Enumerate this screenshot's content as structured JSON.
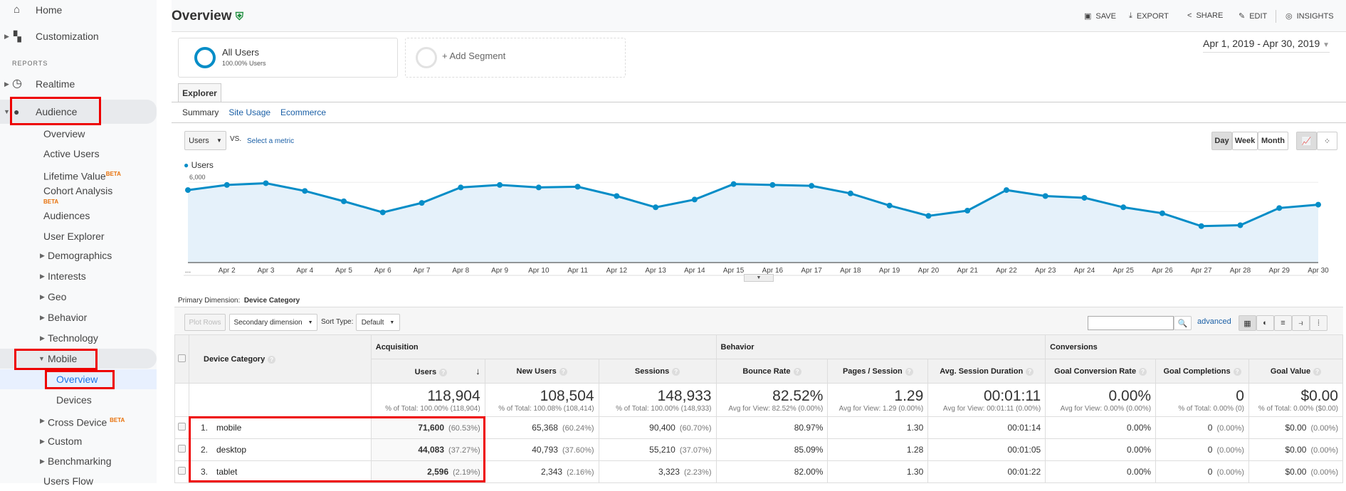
{
  "sidebar": {
    "items": [
      {
        "label": "Home",
        "icon": "home-icon"
      },
      {
        "label": "Customization",
        "icon": "dashboard-plus-icon"
      },
      {
        "label": "REPORTS"
      },
      {
        "label": "Realtime",
        "icon": "clock-icon"
      },
      {
        "label": "Audience",
        "icon": "person-icon"
      },
      {
        "label": "Overview"
      },
      {
        "label": "Active Users"
      },
      {
        "label": "Lifetime Value",
        "badge": "BETA"
      },
      {
        "label": "Cohort Analysis",
        "badge": "BETA"
      },
      {
        "label": "Audiences"
      },
      {
        "label": "User Explorer"
      },
      {
        "label": "Demographics"
      },
      {
        "label": "Interests"
      },
      {
        "label": "Geo"
      },
      {
        "label": "Behavior"
      },
      {
        "label": "Technology"
      },
      {
        "label": "Mobile"
      },
      {
        "label": "Overview"
      },
      {
        "label": "Devices"
      },
      {
        "label": "Cross Device",
        "badge": "BETA"
      },
      {
        "label": "Custom"
      },
      {
        "label": "Benchmarking"
      },
      {
        "label": "Users Flow"
      }
    ]
  },
  "header": {
    "title": "Overview",
    "verified_icon": "shield-check-icon",
    "verified_color": "#1e8e3e",
    "actions": [
      "SAVE",
      "EXPORT",
      "SHARE",
      "EDIT",
      "INSIGHTS"
    ]
  },
  "segments": {
    "all_users": "All Users",
    "all_users_sub": "100.00% Users",
    "add": "+ Add Segment",
    "segment_color": "#058dc7"
  },
  "date_range": "Apr 1, 2019 - Apr 30, 2019",
  "explorer": {
    "tab": "Explorer",
    "subtabs": [
      "Summary",
      "Site Usage",
      "Ecommerce"
    ],
    "metric": "Users",
    "vs": "VS.",
    "select_metric": "Select a metric",
    "granularity": [
      "Day",
      "Week",
      "Month"
    ],
    "active_granularity": "Day"
  },
  "chart_data": {
    "type": "area",
    "series": [
      {
        "name": "Users",
        "color": "#058dc7",
        "values": [
          5470,
          5820,
          5940,
          5410,
          4700,
          3940,
          4590,
          5650,
          5820,
          5650,
          5700,
          5060,
          4290,
          4820,
          5880,
          5820,
          5760,
          5240,
          4410,
          3700,
          4060,
          5470,
          5060,
          4940,
          4290,
          3880,
          3000,
          3060,
          4240,
          4470
        ]
      }
    ],
    "x": [
      "...",
      "Apr 2",
      "Apr 3",
      "Apr 4",
      "Apr 5",
      "Apr 6",
      "Apr 7",
      "Apr 8",
      "Apr 9",
      "Apr 10",
      "Apr 11",
      "Apr 12",
      "Apr 13",
      "Apr 14",
      "Apr 15",
      "Apr 16",
      "Apr 17",
      "Apr 18",
      "Apr 19",
      "Apr 20",
      "Apr 21",
      "Apr 22",
      "Apr 23",
      "Apr 24",
      "Apr 25",
      "Apr 26",
      "Apr 27",
      "Apr 28",
      "Apr 29",
      "Apr 30"
    ],
    "yticks": [
      "2,000",
      "4,000",
      "6,000"
    ],
    "ytick_values": [
      2000,
      4000,
      6000
    ],
    "ylim": [
      500,
      6450
    ],
    "legend": "top-left",
    "grid": true
  },
  "table": {
    "primary_dimension_label": "Primary Dimension:",
    "primary_dimension": "Device Category",
    "plot_rows": "Plot Rows",
    "secondary_dimension": "Secondary dimension",
    "sort_type_label": "Sort Type:",
    "sort_type": "Default",
    "search_value": "",
    "advanced": "advanced",
    "groups": [
      "Acquisition",
      "Behavior",
      "Conversions"
    ],
    "dimension_header": "Device Category",
    "columns": [
      "Users",
      "New Users",
      "Sessions",
      "Bounce Rate",
      "Pages / Session",
      "Avg. Session Duration",
      "Goal Conversion Rate",
      "Goal Completions",
      "Goal Value"
    ],
    "totals": [
      {
        "v": "118,904",
        "s": "% of Total: 100.00% (118,904)"
      },
      {
        "v": "108,504",
        "s": "% of Total: 100.08% (108,414)"
      },
      {
        "v": "148,933",
        "s": "% of Total: 100.00% (148,933)"
      },
      {
        "v": "82.52%",
        "s": "Avg for View: 82.52% (0.00%)"
      },
      {
        "v": "1.29",
        "s": "Avg for View: 1.29 (0.00%)"
      },
      {
        "v": "00:01:11",
        "s": "Avg for View: 00:01:11 (0.00%)"
      },
      {
        "v": "0.00%",
        "s": "Avg for View: 0.00% (0.00%)"
      },
      {
        "v": "0",
        "s": "% of Total: 0.00% (0)"
      },
      {
        "v": "$0.00",
        "s": "% of Total: 0.00% ($0.00)"
      }
    ],
    "rows": [
      {
        "n": "1.",
        "name": "mobile",
        "users": "71,600",
        "users_p": "(60.53%)",
        "new": "65,368",
        "new_p": "(60.24%)",
        "sess": "90,400",
        "sess_p": "(60.70%)",
        "br": "80.97%",
        "pps": "1.30",
        "dur": "00:01:14",
        "gcr": "0.00%",
        "gc": "0",
        "gc_p": "(0.00%)",
        "gv": "$0.00",
        "gv_p": "(0.00%)"
      },
      {
        "n": "2.",
        "name": "desktop",
        "users": "44,083",
        "users_p": "(37.27%)",
        "new": "40,793",
        "new_p": "(37.60%)",
        "sess": "55,210",
        "sess_p": "(37.07%)",
        "br": "85.09%",
        "pps": "1.28",
        "dur": "00:01:05",
        "gcr": "0.00%",
        "gc": "0",
        "gc_p": "(0.00%)",
        "gv": "$0.00",
        "gv_p": "(0.00%)"
      },
      {
        "n": "3.",
        "name": "tablet",
        "users": "2,596",
        "users_p": "(2.19%)",
        "new": "2,343",
        "new_p": "(2.16%)",
        "sess": "3,323",
        "sess_p": "(2.23%)",
        "br": "82.00%",
        "pps": "1.30",
        "dur": "00:01:22",
        "gcr": "0.00%",
        "gc": "0",
        "gc_p": "(0.00%)",
        "gv": "$0.00",
        "gv_p": "(0.00%)"
      }
    ]
  }
}
